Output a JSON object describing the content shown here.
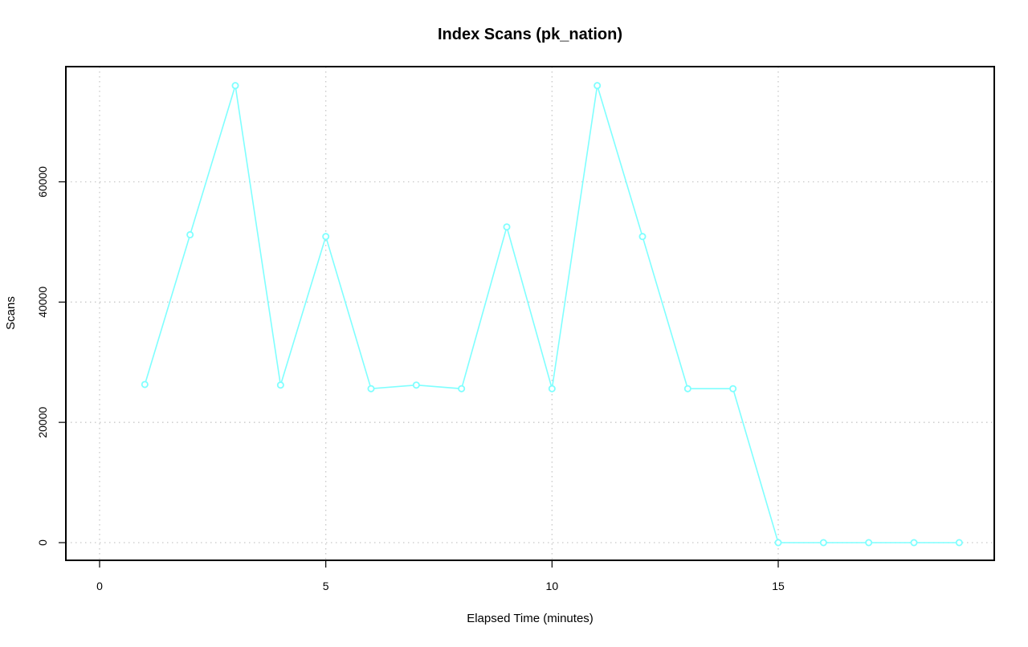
{
  "chart_data": {
    "type": "line",
    "title": "Index Scans (pk_nation)",
    "xlabel": "Elapsed Time (minutes)",
    "ylabel": "Scans",
    "xlim": [
      0,
      19
    ],
    "ylim": [
      0,
      76000
    ],
    "x_ticks": [
      0,
      5,
      10,
      15
    ],
    "y_ticks": [
      0,
      20000,
      40000,
      60000
    ],
    "grid": true,
    "legend": "none",
    "series": [
      {
        "color": "#7fffff",
        "x": [
          1,
          2,
          3,
          4,
          5,
          6,
          7,
          8,
          9,
          10,
          11,
          12,
          13,
          14,
          15,
          16,
          17,
          18,
          19
        ],
        "values": [
          26300,
          51200,
          76000,
          26200,
          50900,
          25600,
          26200,
          25600,
          52500,
          25600,
          76000,
          50900,
          25600,
          25600,
          0,
          0,
          0,
          0,
          0
        ]
      }
    ]
  }
}
